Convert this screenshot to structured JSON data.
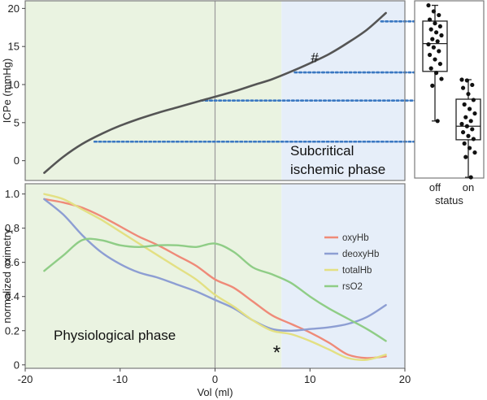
{
  "colors": {
    "physiological_bg": "#eaf3e1",
    "subcritical_bg": "#e6eef9",
    "frame": "#7a7a7a",
    "zero_line": "#9a9a9a",
    "curve": "#555555",
    "dotted_link": "#3a78c2",
    "box": "#222222"
  },
  "top_chart": {
    "ylabel": "ICPe (mmHg)",
    "yticks": [
      0,
      5,
      10,
      15,
      20
    ],
    "ylim": [
      -2.6,
      21
    ],
    "xlim": [
      -20,
      20
    ],
    "subcritical_start": 7,
    "annotation_hash": "#",
    "annotation_hash_at": [
      10.5,
      13.6
    ],
    "phase_label_line1": "Subcritical",
    "phase_label_line2": "ischemic phase"
  },
  "bottom_chart": {
    "xlabel": "Vol (ml)",
    "ylabel": "normalized oximetry",
    "xticks": [
      -20,
      -10,
      0,
      10,
      20
    ],
    "yticks": [
      0,
      0.2,
      0.4,
      0.6,
      0.8,
      1.0
    ],
    "ytick_labels": [
      "0",
      "0.2",
      "0.4",
      "0.6",
      "0.8",
      "1.0"
    ],
    "xlim": [
      -20,
      20
    ],
    "ylim": [
      -0.02,
      1.06
    ],
    "subcritical_start": 7,
    "phase_label": "Physiological phase",
    "annotation_star": "*",
    "annotation_star_at": [
      6.5,
      0.11
    ]
  },
  "boxplot": {
    "ylim": [
      -2.6,
      21
    ],
    "categories": [
      "off",
      "on"
    ],
    "xlabel": "status"
  },
  "chart_data": [
    {
      "type": "line",
      "id": "pressure-volume",
      "xlabel": "Vol (ml)",
      "ylabel": "ICPe (mmHg)",
      "xlim": [
        -20,
        20
      ],
      "ylim": [
        -2.6,
        21
      ],
      "series": [
        {
          "color": "#555555",
          "x": [
            -18,
            -16,
            -14,
            -12,
            -10,
            -8,
            -6,
            -4,
            -2,
            0,
            2,
            4,
            6,
            8,
            10,
            12,
            14,
            16,
            18
          ],
          "y": [
            -1.6,
            0.5,
            2.2,
            3.5,
            4.6,
            5.5,
            6.3,
            7.0,
            7.7,
            8.4,
            9.1,
            9.9,
            10.7,
            11.7,
            12.8,
            14.0,
            15.5,
            17.2,
            19.4
          ]
        }
      ],
      "links": [
        {
          "from_x": 17.5,
          "y": 18.3,
          "to": "box-off-q3"
        },
        {
          "from_x": 8.4,
          "y": 11.6,
          "to": "box-off-q1"
        },
        {
          "from_x": -1.5,
          "y": 7.9,
          "to": "box-on-q3"
        },
        {
          "from_x": -12.7,
          "y": 2.5,
          "to": "box-on-q1"
        }
      ]
    },
    {
      "type": "box",
      "id": "icp-by-status",
      "xlabel": "status",
      "categories": [
        "off",
        "on"
      ],
      "ylim": [
        -2.6,
        21
      ],
      "boxes": [
        {
          "category": "off",
          "whisker_low": 5.0,
          "q1": 11.6,
          "median": 15.3,
          "q3": 18.3,
          "whisker_high": 20.4,
          "points": [
            20.4,
            19.6,
            19.1,
            18.5,
            18.0,
            17.6,
            17.2,
            16.8,
            16.4,
            15.9,
            15.6,
            15.2,
            14.8,
            14.3,
            13.8,
            13.2,
            12.6,
            12.0,
            11.4,
            10.6,
            9.7,
            5.0
          ]
        },
        {
          "category": "on",
          "whisker_low": -2.5,
          "q1": 2.5,
          "median": 4.3,
          "q3": 7.9,
          "whisker_high": 10.5,
          "points": [
            10.5,
            10.4,
            9.8,
            9.4,
            8.6,
            7.8,
            7.2,
            6.6,
            6.0,
            5.5,
            5.0,
            4.6,
            4.3,
            3.9,
            3.5,
            3.0,
            2.6,
            2.0,
            1.4,
            0.8,
            0.2,
            -2.5
          ]
        }
      ]
    },
    {
      "type": "line",
      "id": "normalized-oximetry",
      "xlabel": "Vol (ml)",
      "ylabel": "normalized oximetry",
      "xlim": [
        -20,
        20
      ],
      "ylim": [
        -0.02,
        1.06
      ],
      "legend": "right, inside",
      "series": [
        {
          "name": "oxyHb",
          "color": "#ef8a78",
          "x": [
            -18,
            -16,
            -14,
            -12,
            -10,
            -8,
            -6,
            -4,
            -2,
            0,
            2,
            4,
            6,
            8,
            10,
            12,
            14,
            16,
            18
          ],
          "y": [
            0.97,
            0.95,
            0.92,
            0.87,
            0.81,
            0.75,
            0.7,
            0.64,
            0.58,
            0.5,
            0.45,
            0.37,
            0.29,
            0.24,
            0.19,
            0.13,
            0.06,
            0.04,
            0.05
          ]
        },
        {
          "name": "deoxyHb",
          "color": "#8d9ed3",
          "x": [
            -18,
            -16,
            -14,
            -12,
            -10,
            -8,
            -6,
            -4,
            -2,
            0,
            2,
            4,
            6,
            8,
            10,
            12,
            14,
            16,
            18
          ],
          "y": [
            0.97,
            0.88,
            0.76,
            0.66,
            0.59,
            0.54,
            0.51,
            0.47,
            0.43,
            0.38,
            0.33,
            0.26,
            0.21,
            0.2,
            0.21,
            0.22,
            0.24,
            0.28,
            0.35
          ]
        },
        {
          "name": "totalHb",
          "color": "#e3e083",
          "x": [
            -18,
            -16,
            -14,
            -12,
            -10,
            -8,
            -6,
            -4,
            -2,
            0,
            2,
            4,
            6,
            8,
            10,
            12,
            14,
            16,
            18
          ],
          "y": [
            1.0,
            0.97,
            0.91,
            0.85,
            0.78,
            0.71,
            0.64,
            0.57,
            0.5,
            0.41,
            0.34,
            0.26,
            0.2,
            0.18,
            0.14,
            0.09,
            0.04,
            0.03,
            0.06
          ]
        },
        {
          "name": "rsO2",
          "color": "#8fcd86",
          "x": [
            -18,
            -16,
            -14,
            -12,
            -10,
            -8,
            -6,
            -4,
            -2,
            0,
            2,
            4,
            6,
            8,
            10,
            12,
            14,
            16,
            18
          ],
          "y": [
            0.55,
            0.64,
            0.73,
            0.73,
            0.7,
            0.69,
            0.7,
            0.7,
            0.69,
            0.71,
            0.66,
            0.57,
            0.53,
            0.48,
            0.4,
            0.33,
            0.27,
            0.21,
            0.14
          ]
        }
      ]
    }
  ]
}
